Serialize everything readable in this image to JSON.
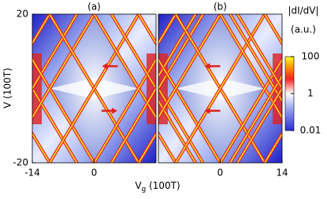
{
  "chart_data": [
    {
      "type": "heatmap",
      "title": "(a)",
      "xlim": [
        -14,
        14
      ],
      "ylim": [
        -20,
        20
      ],
      "xticks": [
        -14,
        0
      ],
      "yticks": [
        -20,
        20
      ],
      "ylabel": "V (100T)"
    },
    {
      "type": "heatmap",
      "title": "(b)",
      "xlim": [
        -14,
        14
      ],
      "ylim": [
        -20,
        20
      ],
      "xticks": [
        0,
        14
      ]
    }
  ],
  "xlabel": {
    "main": "V",
    "sub": "g",
    "rest": " (100T)"
  },
  "colorbar": {
    "label": "|dI/dV|",
    "unit": "(a.u.)",
    "log": true,
    "lim": [
      0.01,
      100
    ],
    "ticks": [
      0.01,
      1,
      100
    ]
  }
}
